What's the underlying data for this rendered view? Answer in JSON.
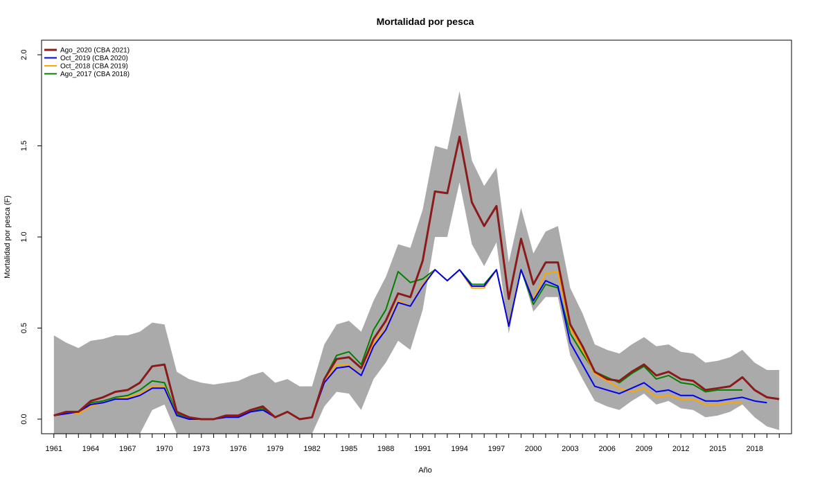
{
  "chart_data": {
    "type": "line",
    "title": "Mortalidad por pesca",
    "xlabel": "Año",
    "ylabel": "Mortalidad por pesca (F)",
    "xlim": [
      1960,
      2021
    ],
    "ylim": [
      -0.08,
      2.08
    ],
    "y_ticks": [
      0.0,
      0.5,
      1.0,
      1.5,
      2.0
    ],
    "y_tick_labels": [
      "0.0",
      "0.5",
      "1.0",
      "1.5",
      "2.0"
    ],
    "x_tick_labels": [
      "1961",
      "1964",
      "1967",
      "1970",
      "1973",
      "1976",
      "1979",
      "1982",
      "1985",
      "1988",
      "1991",
      "1994",
      "1997",
      "2000",
      "2003",
      "2006",
      "2009",
      "2012",
      "2015",
      "2018"
    ],
    "grid": false,
    "legend_position": "top-left",
    "band": {
      "color": "#aaaaaa",
      "x": [
        1961,
        1962,
        1963,
        1964,
        1965,
        1966,
        1967,
        1968,
        1969,
        1970,
        1971,
        1972,
        1973,
        1974,
        1975,
        1976,
        1977,
        1978,
        1979,
        1980,
        1981,
        1982,
        1983,
        1984,
        1985,
        1986,
        1987,
        1988,
        1989,
        1990,
        1991,
        1992,
        1993,
        1994,
        1995,
        1996,
        1997,
        1998,
        1999,
        2000,
        2001,
        2002,
        2003,
        2004,
        2005,
        2006,
        2007,
        2008,
        2009,
        2010,
        2011,
        2012,
        2013,
        2014,
        2015,
        2016,
        2017,
        2018,
        2019,
        2020
      ],
      "upper": [
        0.46,
        0.42,
        0.39,
        0.43,
        0.44,
        0.46,
        0.46,
        0.48,
        0.53,
        0.52,
        0.26,
        0.22,
        0.2,
        0.19,
        0.2,
        0.21,
        0.24,
        0.26,
        0.2,
        0.22,
        0.18,
        0.18,
        0.41,
        0.52,
        0.54,
        0.48,
        0.65,
        0.78,
        0.96,
        0.94,
        1.15,
        1.5,
        1.48,
        1.8,
        1.42,
        1.28,
        1.38,
        0.86,
        1.16,
        0.91,
        1.03,
        1.06,
        0.72,
        0.58,
        0.41,
        0.38,
        0.36,
        0.41,
        0.45,
        0.4,
        0.41,
        0.37,
        0.36,
        0.31,
        0.32,
        0.34,
        0.38,
        0.31,
        0.27,
        0.27
      ],
      "lower": [
        -0.08,
        -0.08,
        -0.08,
        -0.08,
        -0.08,
        -0.08,
        -0.08,
        -0.08,
        0.05,
        0.08,
        -0.08,
        -0.08,
        -0.08,
        -0.08,
        -0.08,
        -0.08,
        -0.08,
        -0.08,
        -0.08,
        -0.08,
        -0.08,
        -0.08,
        0.07,
        0.15,
        0.14,
        0.05,
        0.22,
        0.31,
        0.43,
        0.38,
        0.6,
        1.0,
        1.0,
        1.3,
        0.96,
        0.84,
        0.97,
        0.47,
        0.82,
        0.59,
        0.67,
        0.67,
        0.35,
        0.22,
        0.1,
        0.07,
        0.05,
        0.1,
        0.14,
        0.08,
        0.1,
        0.06,
        0.05,
        0.01,
        0.02,
        0.04,
        0.08,
        0.01,
        -0.04,
        -0.06
      ]
    },
    "series": [
      {
        "name": "Ago_2020 (CBA 2021)",
        "color": "#8b1a1a",
        "width": 3,
        "x": [
          1961,
          1962,
          1963,
          1964,
          1965,
          1966,
          1967,
          1968,
          1969,
          1970,
          1971,
          1972,
          1973,
          1974,
          1975,
          1976,
          1977,
          1978,
          1979,
          1980,
          1981,
          1982,
          1983,
          1984,
          1985,
          1986,
          1987,
          1988,
          1989,
          1990,
          1991,
          1992,
          1993,
          1994,
          1995,
          1996,
          1997,
          1998,
          1999,
          2000,
          2001,
          2002,
          2003,
          2004,
          2005,
          2006,
          2007,
          2008,
          2009,
          2010,
          2011,
          2012,
          2013,
          2014,
          2015,
          2016,
          2017,
          2018,
          2019,
          2020
        ],
        "values": [
          0.02,
          0.04,
          0.04,
          0.1,
          0.12,
          0.15,
          0.16,
          0.2,
          0.29,
          0.3,
          0.04,
          0.01,
          0.0,
          0.0,
          0.02,
          0.02,
          0.05,
          0.07,
          0.01,
          0.04,
          0.0,
          0.01,
          0.22,
          0.33,
          0.34,
          0.28,
          0.44,
          0.54,
          0.69,
          0.67,
          0.87,
          1.25,
          1.24,
          1.55,
          1.19,
          1.06,
          1.17,
          0.66,
          0.99,
          0.74,
          0.86,
          0.86,
          0.52,
          0.4,
          0.26,
          0.22,
          0.21,
          0.26,
          0.3,
          0.24,
          0.26,
          0.22,
          0.21,
          0.16,
          0.17,
          0.18,
          0.23,
          0.16,
          0.12,
          0.11
        ]
      },
      {
        "name": "Oct_2019 (CBA 2020)",
        "color": "#0000ee",
        "width": 2,
        "x": [
          1961,
          1962,
          1963,
          1964,
          1965,
          1966,
          1967,
          1968,
          1969,
          1970,
          1971,
          1972,
          1973,
          1974,
          1975,
          1976,
          1977,
          1978,
          1979,
          1980,
          1981,
          1982,
          1983,
          1984,
          1985,
          1986,
          1987,
          1988,
          1989,
          1990,
          1991,
          1992,
          1993,
          1994,
          1995,
          1996,
          1997,
          1998,
          1999,
          2000,
          2001,
          2002,
          2003,
          2004,
          2005,
          2006,
          2007,
          2008,
          2009,
          2010,
          2011,
          2012,
          2013,
          2014,
          2015,
          2016,
          2017,
          2018,
          2019
        ],
        "values": [
          0.02,
          0.03,
          0.04,
          0.08,
          0.09,
          0.11,
          0.11,
          0.13,
          0.17,
          0.17,
          0.02,
          0.0,
          0.0,
          0.0,
          0.01,
          0.01,
          0.04,
          0.05,
          0.01,
          0.04,
          0.0,
          0.01,
          0.2,
          0.28,
          0.29,
          0.24,
          0.4,
          0.49,
          0.64,
          0.62,
          0.73,
          0.82,
          0.76,
          0.82,
          0.73,
          0.73,
          0.82,
          0.51,
          0.82,
          0.65,
          0.76,
          0.73,
          0.42,
          0.3,
          0.18,
          0.16,
          0.14,
          0.17,
          0.2,
          0.15,
          0.16,
          0.13,
          0.13,
          0.1,
          0.1,
          0.11,
          0.12,
          0.1,
          0.09
        ]
      },
      {
        "name": "Oct_2018 (CBA 2019)",
        "color": "#ffa500",
        "width": 2,
        "x": [
          1961,
          1962,
          1963,
          1964,
          1965,
          1966,
          1967,
          1968,
          1969,
          1970,
          1971,
          1972,
          1973,
          1974,
          1975,
          1976,
          1977,
          1978,
          1979,
          1980,
          1981,
          1982,
          1983,
          1984,
          1985,
          1986,
          1987,
          1988,
          1989,
          1990,
          1991,
          1992,
          1993,
          1994,
          1995,
          1996,
          1997,
          1998,
          1999,
          2000,
          2001,
          2002,
          2003,
          2004,
          2005,
          2006,
          2007,
          2008,
          2009,
          2010,
          2011,
          2012,
          2013,
          2014,
          2015,
          2016,
          2017
        ],
        "values": [
          0.02,
          0.03,
          0.03,
          0.07,
          0.09,
          0.11,
          0.12,
          0.14,
          0.18,
          0.18,
          0.02,
          0.0,
          0.0,
          0.0,
          0.01,
          0.01,
          0.04,
          0.05,
          0.01,
          0.04,
          0.0,
          0.01,
          0.2,
          0.3,
          0.3,
          0.24,
          0.42,
          0.5,
          0.65,
          0.62,
          0.74,
          0.82,
          0.76,
          0.82,
          0.72,
          0.72,
          0.82,
          0.52,
          0.82,
          0.66,
          0.8,
          0.81,
          0.5,
          0.38,
          0.25,
          0.21,
          0.17,
          0.15,
          0.17,
          0.12,
          0.13,
          0.11,
          0.11,
          0.08,
          0.08,
          0.09,
          0.09
        ]
      },
      {
        "name": "Ago_2017 (CBA 2018)",
        "color": "#008000",
        "width": 2,
        "x": [
          1961,
          1962,
          1963,
          1964,
          1965,
          1966,
          1967,
          1968,
          1969,
          1970,
          1971,
          1972,
          1973,
          1974,
          1975,
          1976,
          1977,
          1978,
          1979,
          1980,
          1981,
          1982,
          1983,
          1984,
          1985,
          1986,
          1987,
          1988,
          1989,
          1990,
          1991,
          1992,
          1993,
          1994,
          1995,
          1996,
          1997,
          1998,
          1999,
          2000,
          2001,
          2002,
          2003,
          2004,
          2005,
          2006,
          2007,
          2008,
          2009,
          2010,
          2011,
          2012,
          2013,
          2014,
          2015,
          2016,
          2017
        ],
        "values": [
          0.02,
          0.04,
          0.04,
          0.09,
          0.1,
          0.12,
          0.13,
          0.16,
          0.21,
          0.2,
          0.03,
          0.0,
          0.0,
          0.0,
          0.02,
          0.02,
          0.04,
          0.06,
          0.01,
          0.04,
          0.0,
          0.01,
          0.22,
          0.35,
          0.37,
          0.3,
          0.49,
          0.6,
          0.81,
          0.75,
          0.77,
          0.82,
          0.76,
          0.82,
          0.74,
          0.74,
          0.82,
          0.52,
          0.82,
          0.63,
          0.74,
          0.72,
          0.47,
          0.36,
          0.26,
          0.23,
          0.2,
          0.25,
          0.29,
          0.22,
          0.24,
          0.2,
          0.19,
          0.15,
          0.16,
          0.16,
          0.16
        ]
      }
    ]
  }
}
